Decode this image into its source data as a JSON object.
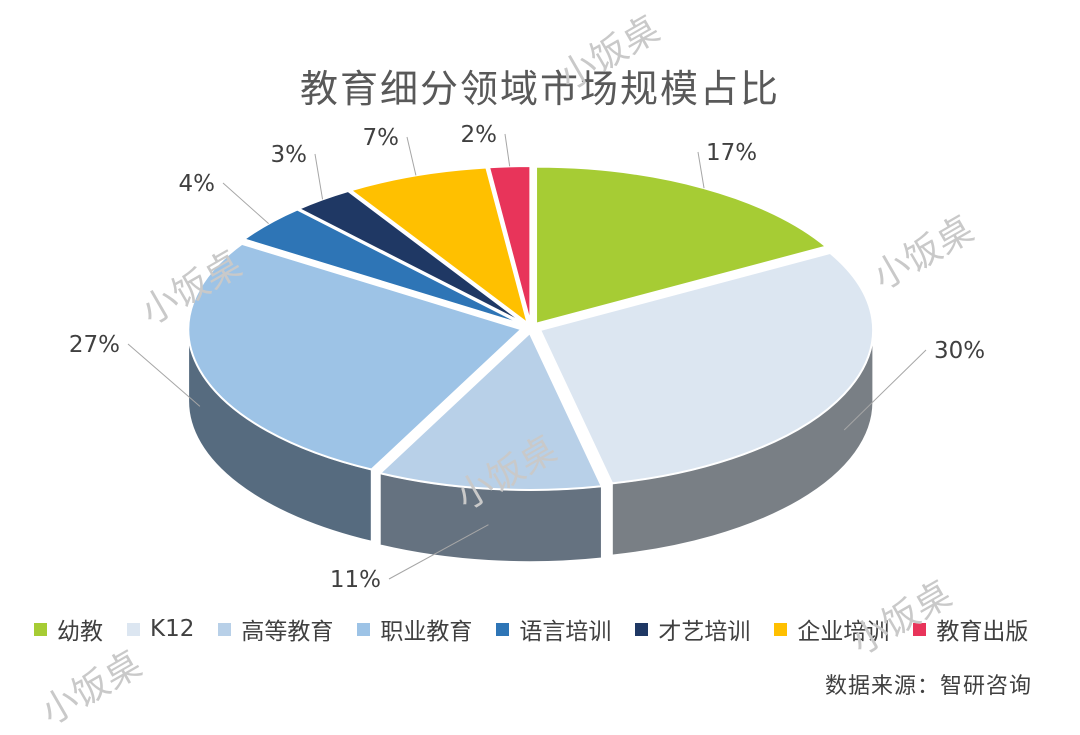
{
  "chart_data": {
    "type": "pie",
    "title": "教育细分领域市场规模占比",
    "categories": [
      "幼教",
      "K12",
      "高等教育",
      "职业教育",
      "语言培训",
      "才艺培训",
      "企业培训",
      "教育出版"
    ],
    "values": [
      17,
      30,
      11,
      27,
      4,
      3,
      7,
      2
    ],
    "data_labels": [
      "17%",
      "30%",
      "11%",
      "27%",
      "4%",
      "3%",
      "7%",
      "2%"
    ],
    "colors": [
      "#A6CC34",
      "#DCE6F1",
      "#B8D0E8",
      "#9DC3E6",
      "#2E75B6",
      "#1F3864",
      "#FFC000",
      "#E8345A"
    ],
    "legend_position": "bottom",
    "style": "3d-exploded"
  },
  "source": "数据来源：智研咨询",
  "watermarks": [
    "小饭桌",
    "小饭桌",
    "小饭桌",
    "小饭桌",
    "小饭桌",
    "小饭桌"
  ]
}
